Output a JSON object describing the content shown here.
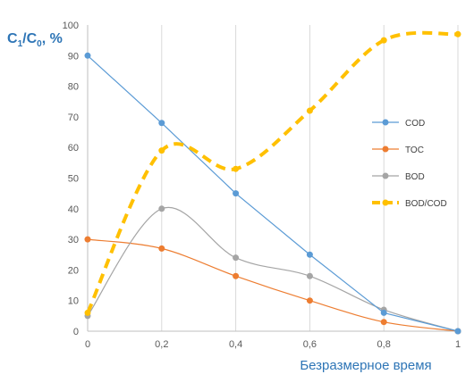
{
  "chart_data": {
    "type": "line",
    "x": [
      0,
      0.2,
      0.4,
      0.6,
      0.8,
      1
    ],
    "x_tick_labels": [
      "0",
      "0,2",
      "0,4",
      "0,6",
      "0,8",
      "1"
    ],
    "y_tick_labels": [
      "0",
      "10",
      "20",
      "30",
      "40",
      "50",
      "60",
      "70",
      "80",
      "90",
      "100"
    ],
    "ylim": [
      0,
      100
    ],
    "xlim": [
      0,
      1
    ],
    "ylabel": {
      "main": "C",
      "sub1": "1",
      "slash": "/C",
      "sub0": "0",
      "unit": ", %"
    },
    "xlabel": "Безразмерное время",
    "grid": "vertical",
    "legend_position": "right",
    "series": [
      {
        "name": "COD",
        "values": [
          90,
          68,
          45,
          25,
          6,
          0
        ],
        "color": "#5b9bd5",
        "style": "straight-thin"
      },
      {
        "name": "TOC",
        "values": [
          30,
          27,
          18,
          10,
          3,
          0
        ],
        "color": "#ed7d31",
        "style": "smooth-thin"
      },
      {
        "name": "BOD",
        "values": [
          5,
          40,
          24,
          18,
          7,
          0
        ],
        "color": "#a5a5a5",
        "style": "smooth-thin"
      },
      {
        "name": "BOD/COD",
        "values": [
          6,
          59,
          53,
          72,
          95,
          97
        ],
        "color": "#ffc000",
        "style": "smooth-dashed"
      }
    ]
  }
}
